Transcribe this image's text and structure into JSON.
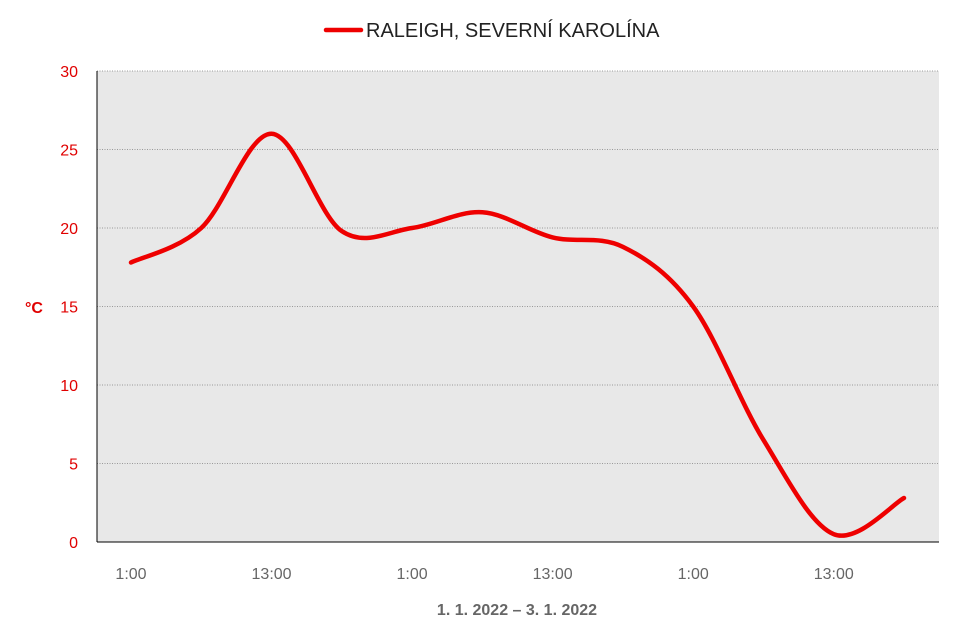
{
  "chart_data": {
    "type": "line",
    "legend": {
      "position": "top-center"
    },
    "xlabel": "1. 1. 2022 – 3. 1. 2022",
    "ylabel": "°C",
    "ylim": [
      0,
      30
    ],
    "yticks": [
      "0",
      "5",
      "10",
      "15",
      "20",
      "25",
      "30"
    ],
    "xtick_labels": [
      "1:00",
      "13:00",
      "1:00",
      "13:00",
      "1:00",
      "13:00"
    ],
    "grid": true,
    "colors": {
      "series": "#ee0000",
      "plot_background": "#e8e8e8",
      "grid": "#999999",
      "axis": "#000000"
    },
    "series": [
      {
        "name": "RALEIGH, SEVERNÍ KAROLÍNA",
        "x": [
          "1:00",
          "7:00",
          "13:00",
          "19:00",
          "1:00",
          "7:00",
          "13:00",
          "19:00",
          "1:00",
          "7:00",
          "13:00",
          "19:00"
        ],
        "values": [
          17.8,
          20.0,
          26.0,
          19.8,
          20.0,
          21.0,
          19.4,
          18.8,
          15.0,
          6.5,
          0.5,
          2.8
        ]
      }
    ]
  }
}
